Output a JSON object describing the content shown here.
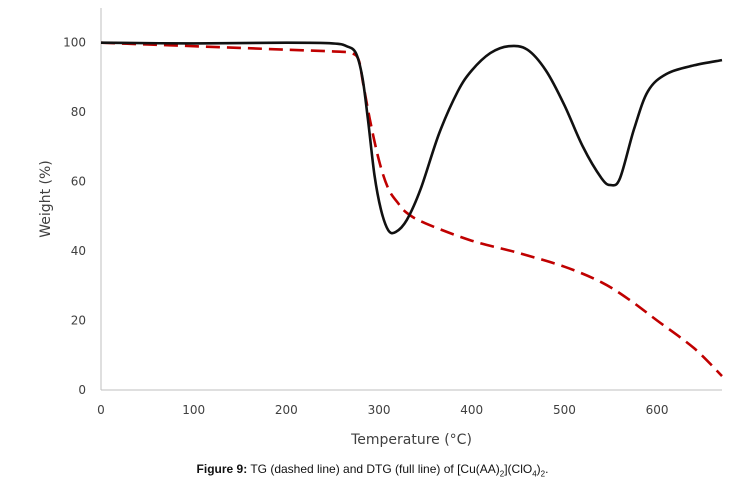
{
  "chart_data": {
    "type": "line",
    "xlabel": "Temperature (°C)",
    "ylabel": "Weight (%)",
    "xlim": [
      0,
      670
    ],
    "ylim": [
      0,
      110
    ],
    "x_ticks": [
      0,
      100,
      200,
      300,
      400,
      500,
      600
    ],
    "y_ticks": [
      0,
      20,
      40,
      60,
      80,
      100
    ],
    "grid": false,
    "legend": "none",
    "series": [
      {
        "key": "tg",
        "style": "dashed",
        "color": "#c00000",
        "points": [
          [
            0,
            100
          ],
          [
            50,
            99.5
          ],
          [
            100,
            99
          ],
          [
            150,
            98.5
          ],
          [
            200,
            98
          ],
          [
            250,
            97.5
          ],
          [
            270,
            97
          ],
          [
            278,
            95
          ],
          [
            283,
            88
          ],
          [
            290,
            78
          ],
          [
            300,
            66
          ],
          [
            310,
            58
          ],
          [
            320,
            54
          ],
          [
            330,
            51
          ],
          [
            350,
            48
          ],
          [
            400,
            43
          ],
          [
            450,
            39.5
          ],
          [
            500,
            35.5
          ],
          [
            540,
            31
          ],
          [
            570,
            26
          ],
          [
            600,
            20
          ],
          [
            640,
            12
          ],
          [
            670,
            4
          ]
        ]
      },
      {
        "key": "dtg",
        "style": "solid",
        "color": "#111111",
        "points": [
          [
            0,
            100
          ],
          [
            100,
            99.8
          ],
          [
            200,
            100
          ],
          [
            250,
            99.8
          ],
          [
            265,
            99
          ],
          [
            275,
            97
          ],
          [
            282,
            90
          ],
          [
            288,
            78
          ],
          [
            295,
            62
          ],
          [
            302,
            52
          ],
          [
            310,
            46
          ],
          [
            318,
            45.5
          ],
          [
            330,
            49
          ],
          [
            345,
            58
          ],
          [
            365,
            74
          ],
          [
            385,
            86
          ],
          [
            400,
            92
          ],
          [
            420,
            97
          ],
          [
            440,
            99
          ],
          [
            460,
            98
          ],
          [
            480,
            92
          ],
          [
            500,
            82
          ],
          [
            520,
            70
          ],
          [
            540,
            61
          ],
          [
            550,
            59
          ],
          [
            560,
            61
          ],
          [
            575,
            75
          ],
          [
            590,
            86
          ],
          [
            610,
            91
          ],
          [
            640,
            93.5
          ],
          [
            670,
            95
          ]
        ]
      }
    ]
  },
  "caption": {
    "label": "Figure 9:",
    "text_pre": " TG (dashed line) and DTG (full line) of [Cu(AA)",
    "sub1": "2",
    "text_mid": "](ClO",
    "sub2": "4",
    "text_mid2": ")",
    "sub3": "2",
    "text_end": "."
  }
}
